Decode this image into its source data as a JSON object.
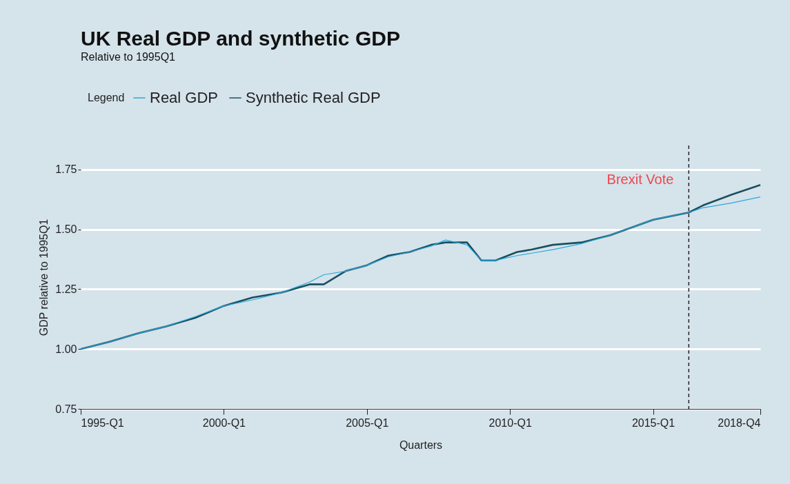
{
  "chart_data": {
    "type": "line",
    "title": "UK Real GDP and synthetic GDP",
    "subtitle": "Relative to 1995Q1",
    "xlabel": "Quarters",
    "ylabel": "GDP relative to 1995Q1",
    "legend_title": "Legend",
    "x": [
      "1995-01",
      "1996-01",
      "1997-01",
      "1998-01",
      "1999-01",
      "2000-01",
      "2001-01",
      "2002-01",
      "2003-01",
      "2003-07",
      "2004-04",
      "2005-01",
      "2005-10",
      "2006-07",
      "2007-04",
      "2007-10",
      "2008-07",
      "2009-01",
      "2009-07",
      "2010-04",
      "2010-10",
      "2011-07",
      "2012-07",
      "2013-07",
      "2015-01",
      "2016-04",
      "2016-10",
      "2017-10",
      "2018-10"
    ],
    "series": [
      {
        "name": "Real GDP",
        "color": "#29a8df",
        "values": [
          1,
          1.03,
          1.065,
          1.095,
          1.135,
          1.18,
          1.205,
          1.235,
          1.28,
          1.31,
          1.325,
          1.35,
          1.385,
          1.405,
          1.43,
          1.455,
          1.435,
          1.37,
          1.37,
          1.39,
          1.4,
          1.415,
          1.44,
          1.475,
          1.54,
          1.57,
          1.59,
          1.61,
          1.635
        ]
      },
      {
        "name": "Synthetic Real GDP",
        "color": "#1b4f5e",
        "values": [
          1,
          1.03,
          1.065,
          1.095,
          1.13,
          1.18,
          1.215,
          1.235,
          1.27,
          1.27,
          1.325,
          1.35,
          1.39,
          1.405,
          1.435,
          1.445,
          1.445,
          1.37,
          1.37,
          1.405,
          1.415,
          1.435,
          1.445,
          1.475,
          1.54,
          1.57,
          1.6,
          1.645,
          1.685
        ]
      }
    ],
    "xlim": [
      "1995-01",
      "2018-10"
    ],
    "xticks": [
      {
        "value": "1995-01",
        "label": "1995-Q1"
      },
      {
        "value": "2000-01",
        "label": "2000-Q1"
      },
      {
        "value": "2005-01",
        "label": "2005-Q1"
      },
      {
        "value": "2010-01",
        "label": "2010-Q1"
      },
      {
        "value": "2015-01",
        "label": "2015-Q1"
      },
      {
        "value": "2018-10",
        "label": "2018-Q4"
      }
    ],
    "ylim": [
      0.75,
      1.85
    ],
    "yticks": [
      {
        "value": 0.75,
        "label": "0.75"
      },
      {
        "value": 1,
        "label": "1.00"
      },
      {
        "value": 1.25,
        "label": "1.25"
      },
      {
        "value": 1.5,
        "label": "1.50"
      },
      {
        "value": 1.75,
        "label": "1.75"
      }
    ],
    "ref_lines": [
      {
        "axis": "x",
        "value": "2016-04",
        "label": "Brexit Vote",
        "color": "#222222",
        "line_style": "dashed"
      }
    ],
    "grid": "y",
    "legend": "top",
    "line_style": "solid"
  }
}
